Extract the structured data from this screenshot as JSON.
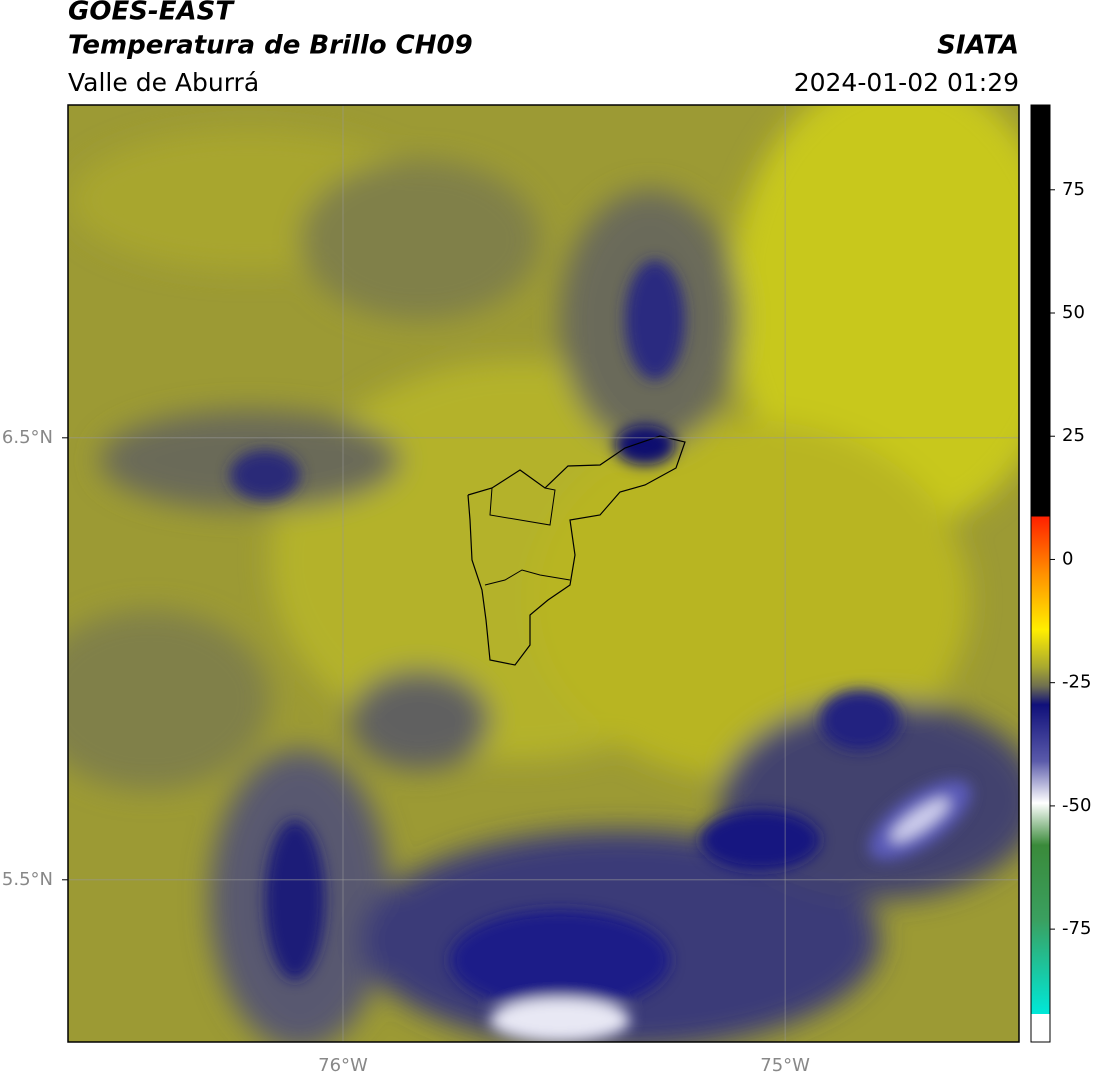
{
  "header": {
    "title": "GOES-EAST",
    "subtitle": "Temperatura de Brillo CH09",
    "region": "Valle de Aburrá",
    "agency": "SIATA",
    "datetime": "2024-01-02 01:29"
  },
  "map": {
    "lonlim": [
      -76.622,
      -74.471
    ],
    "latlim": [
      5.133,
      7.253
    ],
    "lonticks": [
      {
        "value": -76,
        "label": "76°W"
      },
      {
        "value": -75,
        "label": "75°W"
      }
    ],
    "latticks": [
      {
        "value": 6.5,
        "label": "6.5°N"
      },
      {
        "value": 5.5,
        "label": "5.5°N"
      }
    ]
  },
  "colorbar": {
    "clim": [
      -97.9,
      92.2
    ],
    "ticks": [
      75,
      50,
      25,
      0,
      -25,
      -50,
      -75
    ]
  }
}
